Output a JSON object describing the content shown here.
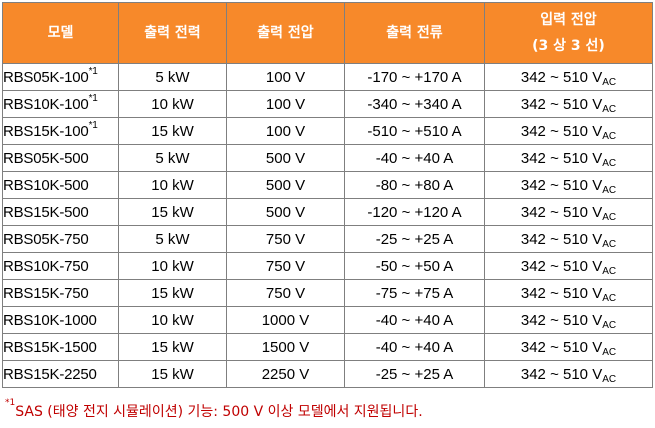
{
  "table": {
    "headers": {
      "model": "모델",
      "output_power": "출력 전력",
      "output_voltage": "출력 전압",
      "output_current": "출력 전류",
      "input_voltage_line1": "입력 전압",
      "input_voltage_line2": "(3 상 3 선)"
    },
    "ac_subscript": "AC",
    "footnote_marker": "*1",
    "rows": [
      {
        "model": "RBS05K-100",
        "fn": "*1",
        "power": "5 kW",
        "voltage": "100 V",
        "current": "-170 ~ +170 A",
        "input": "342 ~ 510 V"
      },
      {
        "model": "RBS10K-100",
        "fn": "*1",
        "power": "10 kW",
        "voltage": "100 V",
        "current": "-340 ~ +340 A",
        "input": "342 ~ 510 V"
      },
      {
        "model": "RBS15K-100",
        "fn": "*1",
        "power": "15 kW",
        "voltage": "100 V",
        "current": "-510 ~ +510 A",
        "input": "342 ~ 510 V"
      },
      {
        "model": "RBS05K-500",
        "fn": "",
        "power": "5 kW",
        "voltage": "500 V",
        "current": "-40 ~ +40 A",
        "input": "342 ~ 510 V"
      },
      {
        "model": "RBS10K-500",
        "fn": "",
        "power": "10 kW",
        "voltage": "500 V",
        "current": "-80 ~ +80 A",
        "input": "342 ~ 510 V"
      },
      {
        "model": "RBS15K-500",
        "fn": "",
        "power": "15 kW",
        "voltage": "500 V",
        "current": "-120 ~ +120 A",
        "input": "342 ~ 510 V"
      },
      {
        "model": "RBS05K-750",
        "fn": "",
        "power": "5 kW",
        "voltage": "750 V",
        "current": "-25 ~ +25 A",
        "input": "342 ~ 510 V"
      },
      {
        "model": "RBS10K-750",
        "fn": "",
        "power": "10 kW",
        "voltage": "750 V",
        "current": "-50 ~ +50 A",
        "input": "342 ~ 510 V"
      },
      {
        "model": "RBS15K-750",
        "fn": "",
        "power": "15 kW",
        "voltage": "750 V",
        "current": "-75 ~ +75 A",
        "input": "342 ~ 510 V"
      },
      {
        "model": "RBS10K-1000",
        "fn": "",
        "power": "10 kW",
        "voltage": "1000 V",
        "current": "-40 ~ +40 A",
        "input": "342 ~ 510 V"
      },
      {
        "model": "RBS15K-1500",
        "fn": "",
        "power": "15 kW",
        "voltage": "1500 V",
        "current": "-40 ~ +40 A",
        "input": "342 ~ 510 V"
      },
      {
        "model": "RBS15K-2250",
        "fn": "",
        "power": "15 kW",
        "voltage": "2250 V",
        "current": "-25 ~ +25 A",
        "input": "342 ~ 510 V"
      }
    ]
  },
  "footnote": {
    "marker": "*1",
    "text": "SAS (태양 전지 시뮬레이션) 기능: 500 V 이상 모델에서 지원됩니다."
  },
  "colors": {
    "header_bg": "#f7892a",
    "header_text": "#ffffff",
    "border": "#7f7f7f",
    "footnote_text": "#c00000"
  }
}
